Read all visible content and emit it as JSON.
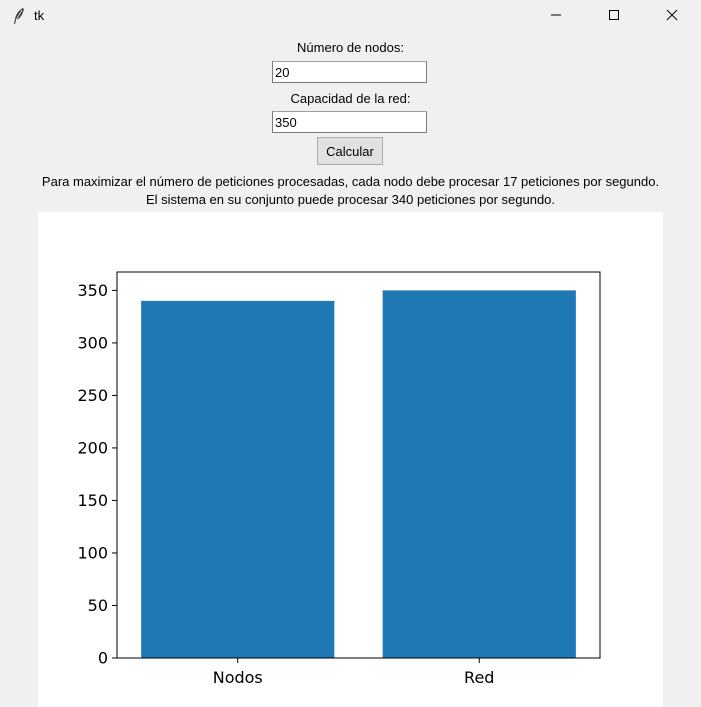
{
  "window": {
    "title": "tk",
    "icon": "feather-icon",
    "controls": [
      "minimize-icon",
      "maximize-icon",
      "close-icon"
    ]
  },
  "form": {
    "nodes_label": "Número de nodos:",
    "nodes_value": "20",
    "capacity_label": "Capacidad de la red:",
    "capacity_value": "350",
    "calculate_label": "Calcular"
  },
  "result": {
    "line1": "Para maximizar el número de peticiones procesadas, cada nodo debe procesar 17 peticiones por segundo.",
    "line2": "El sistema en su conjunto puede procesar 340 peticiones por segundo."
  },
  "chart_data": {
    "type": "bar",
    "categories": [
      "Nodos",
      "Red"
    ],
    "values": [
      340,
      350
    ],
    "ylim": [
      0,
      367.5
    ],
    "yticks": [
      0,
      50,
      100,
      150,
      200,
      250,
      300,
      350
    ],
    "bar_color": "#1f77b4",
    "grid": false,
    "title": "",
    "xlabel": "",
    "ylabel": ""
  }
}
